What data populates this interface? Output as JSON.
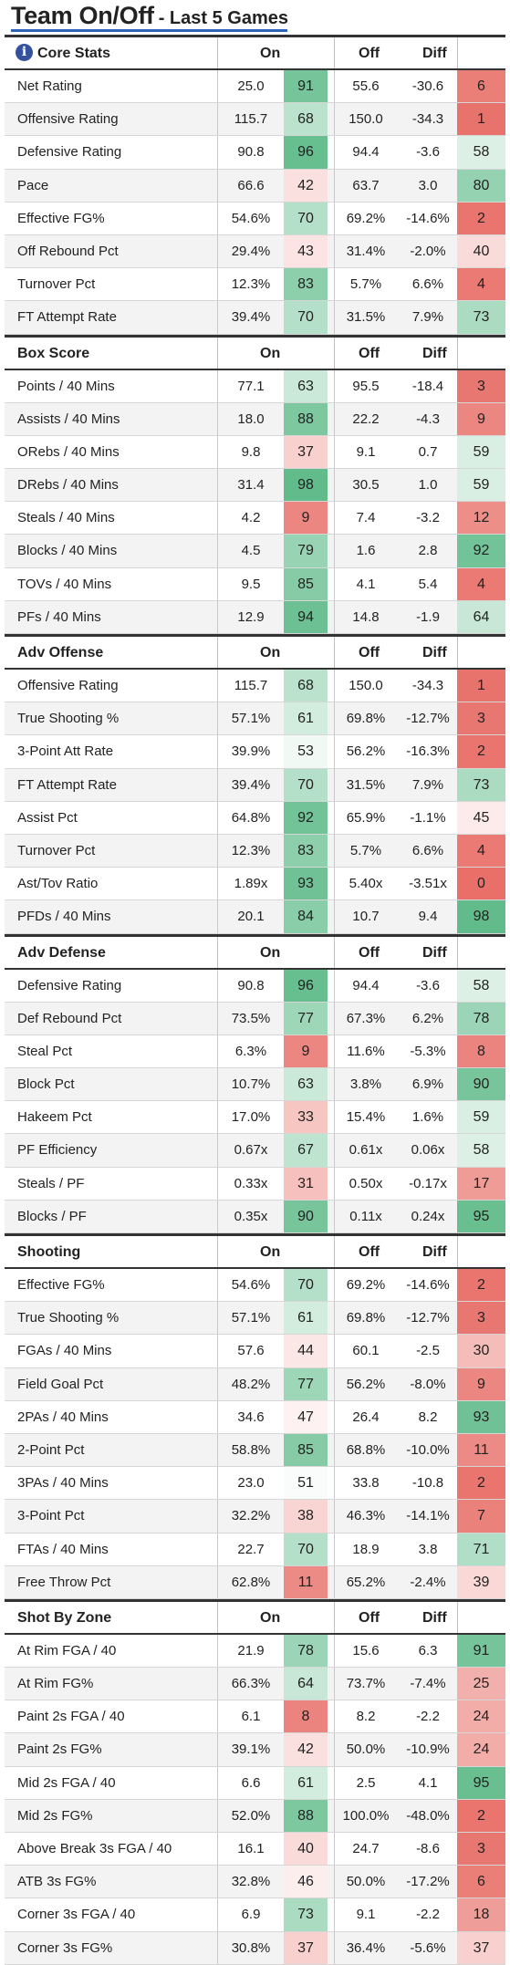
{
  "title": {
    "main": "Team On/Off",
    "sub": "- Last 5 Games"
  },
  "columns": {
    "on": "On",
    "off": "Off",
    "diff": "Diff"
  },
  "info_icon_glyph": "i",
  "colors": {
    "rank_high": "#5cb987",
    "rank_low": "#e87069",
    "rank_mid": "#ffffff"
  },
  "sections": [
    {
      "title": "Core Stats",
      "icon": "info-icon",
      "rows": [
        [
          "Net Rating",
          "25.0",
          "91",
          "55.6",
          "-30.6",
          "6"
        ],
        [
          "Offensive Rating",
          "115.7",
          "68",
          "150.0",
          "-34.3",
          "1"
        ],
        [
          "Defensive Rating",
          "90.8",
          "96",
          "94.4",
          "-3.6",
          "58"
        ],
        [
          "Pace",
          "66.6",
          "42",
          "63.7",
          "3.0",
          "80"
        ],
        [
          "Effective FG%",
          "54.6%",
          "70",
          "69.2%",
          "-14.6%",
          "2"
        ],
        [
          "Off Rebound Pct",
          "29.4%",
          "43",
          "31.4%",
          "-2.0%",
          "40"
        ],
        [
          "Turnover Pct",
          "12.3%",
          "83",
          "5.7%",
          "6.6%",
          "4"
        ],
        [
          "FT Attempt Rate",
          "39.4%",
          "70",
          "31.5%",
          "7.9%",
          "73"
        ]
      ]
    },
    {
      "title": "Box Score",
      "rows": [
        [
          "Points / 40 Mins",
          "77.1",
          "63",
          "95.5",
          "-18.4",
          "3"
        ],
        [
          "Assists / 40 Mins",
          "18.0",
          "88",
          "22.2",
          "-4.3",
          "9"
        ],
        [
          "ORebs / 40 Mins",
          "9.8",
          "37",
          "9.1",
          "0.7",
          "59"
        ],
        [
          "DRebs / 40 Mins",
          "31.4",
          "98",
          "30.5",
          "1.0",
          "59"
        ],
        [
          "Steals / 40 Mins",
          "4.2",
          "9",
          "7.4",
          "-3.2",
          "12"
        ],
        [
          "Blocks / 40 Mins",
          "4.5",
          "79",
          "1.6",
          "2.8",
          "92"
        ],
        [
          "TOVs / 40 Mins",
          "9.5",
          "85",
          "4.1",
          "5.4",
          "4"
        ],
        [
          "PFs / 40 Mins",
          "12.9",
          "94",
          "14.8",
          "-1.9",
          "64"
        ]
      ]
    },
    {
      "title": "Adv Offense",
      "rows": [
        [
          "Offensive Rating",
          "115.7",
          "68",
          "150.0",
          "-34.3",
          "1"
        ],
        [
          "True Shooting %",
          "57.1%",
          "61",
          "69.8%",
          "-12.7%",
          "3"
        ],
        [
          "3-Point Att Rate",
          "39.9%",
          "53",
          "56.2%",
          "-16.3%",
          "2"
        ],
        [
          "FT Attempt Rate",
          "39.4%",
          "70",
          "31.5%",
          "7.9%",
          "73"
        ],
        [
          "Assist Pct",
          "64.8%",
          "92",
          "65.9%",
          "-1.1%",
          "45"
        ],
        [
          "Turnover Pct",
          "12.3%",
          "83",
          "5.7%",
          "6.6%",
          "4"
        ],
        [
          "Ast/Tov Ratio",
          "1.89x",
          "93",
          "5.40x",
          "-3.51x",
          "0"
        ],
        [
          "PFDs / 40 Mins",
          "20.1",
          "84",
          "10.7",
          "9.4",
          "98"
        ]
      ]
    },
    {
      "title": "Adv Defense",
      "rows": [
        [
          "Defensive Rating",
          "90.8",
          "96",
          "94.4",
          "-3.6",
          "58"
        ],
        [
          "Def Rebound Pct",
          "73.5%",
          "77",
          "67.3%",
          "6.2%",
          "78"
        ],
        [
          "Steal Pct",
          "6.3%",
          "9",
          "11.6%",
          "-5.3%",
          "8"
        ],
        [
          "Block Pct",
          "10.7%",
          "63",
          "3.8%",
          "6.9%",
          "90"
        ],
        [
          "Hakeem Pct",
          "17.0%",
          "33",
          "15.4%",
          "1.6%",
          "59"
        ],
        [
          "PF Efficiency",
          "0.67x",
          "67",
          "0.61x",
          "0.06x",
          "58"
        ],
        [
          "Steals / PF",
          "0.33x",
          "31",
          "0.50x",
          "-0.17x",
          "17"
        ],
        [
          "Blocks / PF",
          "0.35x",
          "90",
          "0.11x",
          "0.24x",
          "95"
        ]
      ]
    },
    {
      "title": "Shooting",
      "rows": [
        [
          "Effective FG%",
          "54.6%",
          "70",
          "69.2%",
          "-14.6%",
          "2"
        ],
        [
          "True Shooting %",
          "57.1%",
          "61",
          "69.8%",
          "-12.7%",
          "3"
        ],
        [
          "FGAs / 40 Mins",
          "57.6",
          "44",
          "60.1",
          "-2.5",
          "30"
        ],
        [
          "Field Goal Pct",
          "48.2%",
          "77",
          "56.2%",
          "-8.0%",
          "9"
        ],
        [
          "2PAs / 40 Mins",
          "34.6",
          "47",
          "26.4",
          "8.2",
          "93"
        ],
        [
          "2-Point Pct",
          "58.8%",
          "85",
          "68.8%",
          "-10.0%",
          "11"
        ],
        [
          "3PAs / 40 Mins",
          "23.0",
          "51",
          "33.8",
          "-10.8",
          "2"
        ],
        [
          "3-Point Pct",
          "32.2%",
          "38",
          "46.3%",
          "-14.1%",
          "7"
        ],
        [
          "FTAs / 40 Mins",
          "22.7",
          "70",
          "18.9",
          "3.8",
          "71"
        ],
        [
          "Free Throw Pct",
          "62.8%",
          "11",
          "65.2%",
          "-2.4%",
          "39"
        ]
      ]
    },
    {
      "title": "Shot By Zone",
      "rows": [
        [
          "At Rim FGA / 40",
          "21.9",
          "78",
          "15.6",
          "6.3",
          "91"
        ],
        [
          "At Rim FG%",
          "66.3%",
          "64",
          "73.7%",
          "-7.4%",
          "25"
        ],
        [
          "Paint 2s FGA / 40",
          "6.1",
          "8",
          "8.2",
          "-2.2",
          "24"
        ],
        [
          "Paint 2s FG%",
          "39.1%",
          "42",
          "50.0%",
          "-10.9%",
          "24"
        ],
        [
          "Mid 2s FGA / 40",
          "6.6",
          "61",
          "2.5",
          "4.1",
          "95"
        ],
        [
          "Mid 2s FG%",
          "52.0%",
          "88",
          "100.0%",
          "-48.0%",
          "2"
        ],
        [
          "Above Break 3s FGA / 40",
          "16.1",
          "40",
          "24.7",
          "-8.6",
          "3"
        ],
        [
          "ATB 3s FG%",
          "32.8%",
          "46",
          "50.0%",
          "-17.2%",
          "6"
        ],
        [
          "Corner 3s FGA / 40",
          "6.9",
          "73",
          "9.1",
          "-2.2",
          "18"
        ],
        [
          "Corner 3s FG%",
          "30.8%",
          "37",
          "36.4%",
          "-5.6%",
          "37"
        ]
      ]
    }
  ]
}
